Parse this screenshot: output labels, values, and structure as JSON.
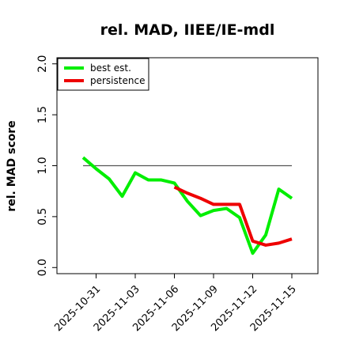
{
  "chart_data": {
    "type": "line",
    "title": "rel. MAD, IIEE/IE-mdl",
    "y_label": "rel. MAD score",
    "x": [
      "2025-10-30",
      "2025-10-31",
      "2025-11-01",
      "2025-11-02",
      "2025-11-03",
      "2025-11-04",
      "2025-11-05",
      "2025-11-06",
      "2025-11-07",
      "2025-11-08",
      "2025-11-09",
      "2025-11-10",
      "2025-11-11",
      "2025-11-12",
      "2025-11-13",
      "2025-11-14",
      "2025-11-15"
    ],
    "series": [
      {
        "name": "best est.",
        "color": "#00ee00",
        "values": [
          1.08,
          0.97,
          0.87,
          0.7,
          0.93,
          0.86,
          0.86,
          0.83,
          0.65,
          0.51,
          0.56,
          0.58,
          0.49,
          0.14,
          0.32,
          0.77,
          0.68
        ]
      },
      {
        "name": "persistence",
        "color": "#ee0000",
        "values": [
          null,
          null,
          null,
          null,
          null,
          null,
          null,
          0.79,
          0.73,
          0.68,
          0.62,
          0.62,
          0.62,
          0.26,
          0.22,
          0.24,
          0.28
        ]
      }
    ],
    "reference_line": {
      "value": 1,
      "color": "#555555"
    },
    "xlim": [
      "2025-10-28",
      "2025-11-17"
    ],
    "xticks": [
      "2025-10-31",
      "2025-11-03",
      "2025-11-06",
      "2025-11-09",
      "2025-11-12",
      "2025-11-15"
    ],
    "ylim": [
      -0.06,
      2.06
    ],
    "yticks": [
      {
        "value": 0,
        "label": "0.0"
      },
      0.5,
      {
        "value": 1,
        "label": "1.0"
      },
      1.5,
      {
        "value": 2,
        "label": "2.0"
      }
    ],
    "legend_position": "top-left"
  }
}
